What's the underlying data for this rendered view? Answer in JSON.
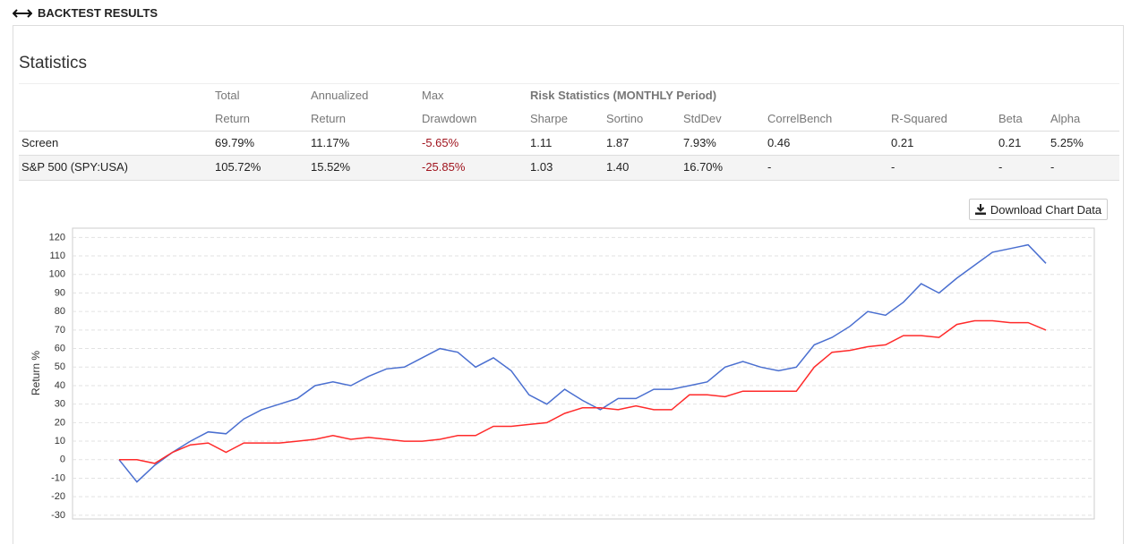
{
  "header": {
    "title": "BACKTEST RESULTS"
  },
  "statistics": {
    "title": "Statistics",
    "group_header": "Risk Statistics (MONTHLY Period)",
    "header_top": [
      "Total",
      "Annualized",
      "Max"
    ],
    "header_bottom": [
      "Return",
      "Return",
      "Drawdown",
      "Sharpe",
      "Sortino",
      "StdDev",
      "CorrelBench",
      "R-Squared",
      "Beta",
      "Alpha"
    ],
    "rows": [
      [
        "Screen",
        "69.79%",
        "11.17%",
        "-5.65%",
        "1.11",
        "1.87",
        "7.93%",
        "0.46",
        "0.21",
        "0.21",
        "5.25%"
      ],
      [
        "S&P 500 (SPY:USA)",
        "105.72%",
        "15.52%",
        "-25.85%",
        "1.03",
        "1.40",
        "16.70%",
        "-",
        "-",
        "-",
        "-"
      ]
    ]
  },
  "download_button": "Download Chart Data",
  "chart_data": {
    "type": "line",
    "y_label": "Return %",
    "ylim": [
      -32,
      125
    ],
    "yticks": [
      -30,
      -20,
      -10,
      0,
      10,
      20,
      30,
      40,
      50,
      60,
      70,
      80,
      90,
      100,
      110,
      120
    ],
    "grid": true,
    "series": [
      {
        "color": "#4a6fd0",
        "values": [
          0,
          -12,
          -3,
          4,
          10,
          15,
          14,
          22,
          27,
          30,
          33,
          40,
          42,
          40,
          45,
          49,
          50,
          55,
          60,
          58,
          50,
          55,
          48,
          35,
          30,
          38,
          32,
          27,
          33,
          33,
          38,
          38,
          40,
          42,
          50,
          53,
          50,
          48,
          50,
          62,
          66,
          72,
          80,
          78,
          85,
          95,
          90,
          98,
          105,
          112,
          114,
          116,
          106
        ]
      },
      {
        "color": "#ff2a2a",
        "values": [
          0,
          0,
          -2,
          4,
          8,
          9,
          4,
          9,
          9,
          9,
          10,
          11,
          13,
          11,
          12,
          11,
          10,
          10,
          11,
          13,
          13,
          18,
          18,
          19,
          20,
          25,
          28,
          28,
          27,
          29,
          27,
          27,
          35,
          35,
          34,
          37,
          37,
          37,
          37,
          50,
          58,
          59,
          61,
          62,
          67,
          67,
          66,
          73,
          75,
          75,
          74,
          74,
          70
        ]
      }
    ]
  }
}
